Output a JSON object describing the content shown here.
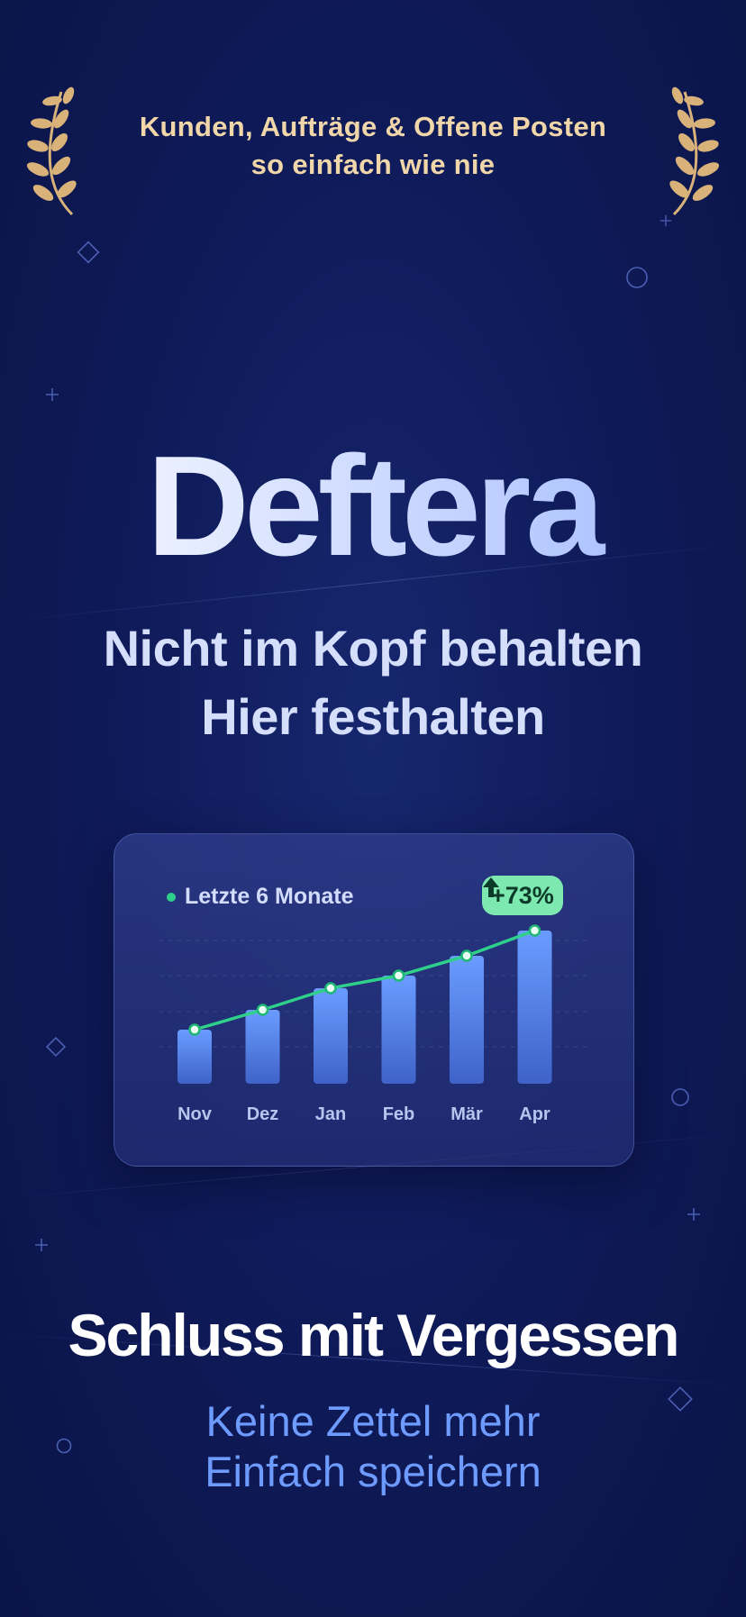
{
  "top_text": {
    "line1": "Kunden, Aufträge & Offene Posten",
    "line2": "so einfach wie nie"
  },
  "brand": "Deftera",
  "tagline": {
    "line1": "Nicht im Kopf behalten",
    "line2": "Hier festhalten"
  },
  "chart_data": {
    "type": "bar",
    "legend": "Letzte 6 Monate",
    "categories": [
      "Nov",
      "Dez",
      "Jan",
      "Feb",
      "Mär",
      "Apr"
    ],
    "values": [
      30,
      41,
      53,
      60,
      71,
      85
    ],
    "badge": "+73%",
    "overlay_line": true,
    "grid": true
  },
  "headline": "Schluss mit Vergessen",
  "sub": {
    "line1": "Keine Zettel mehr",
    "line2": "Einfach speichern"
  },
  "colors": {
    "background": "#0f1b5a",
    "gold": "#f0d6a8",
    "bar": "#5b8cf0",
    "line": "#2fd08a",
    "badge": "#7de8b0",
    "accent": "#6e9bff"
  },
  "icons": {
    "laurel": "laurel-wreath-icon",
    "arrow": "arrow-up-icon"
  }
}
